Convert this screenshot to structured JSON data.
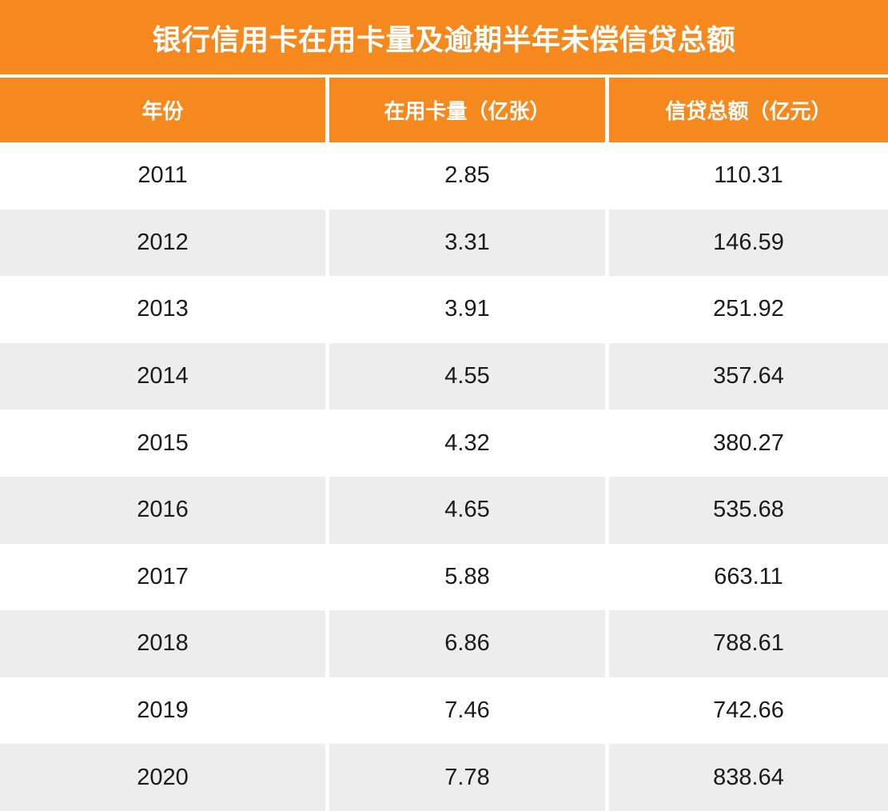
{
  "chart_data": {
    "type": "table",
    "title": "银行信用卡在用卡量及逾期半年未偿信贷总额",
    "columns": [
      "年份",
      "在用卡量（亿张）",
      "信贷总额（亿元）"
    ],
    "rows": [
      [
        2011,
        2.85,
        110.31
      ],
      [
        2012,
        3.31,
        146.59
      ],
      [
        2013,
        3.91,
        251.92
      ],
      [
        2014,
        4.55,
        357.64
      ],
      [
        2015,
        4.32,
        380.27
      ],
      [
        2016,
        4.65,
        535.68
      ],
      [
        2017,
        5.88,
        663.11
      ],
      [
        2018,
        6.86,
        788.61
      ],
      [
        2019,
        7.46,
        742.66
      ],
      [
        2020,
        7.78,
        838.64
      ]
    ]
  },
  "colors": {
    "accent_orange": "#F6891E",
    "row_alt_gray": "#EDEDED",
    "header_text": "#FFFFFF",
    "body_text": "#1A1A1A"
  }
}
